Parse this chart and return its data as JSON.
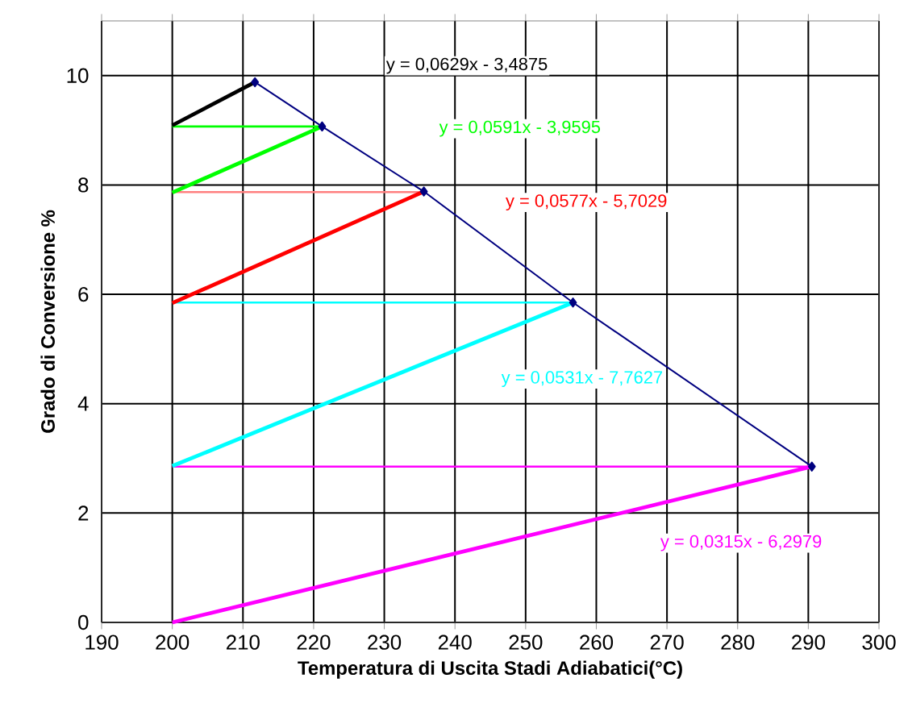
{
  "chart_data": {
    "type": "line",
    "xlabel": "Temperatura di Uscita Stadi Adiabatici(°C)",
    "ylabel": "Grado di Conversione %",
    "xlim": [
      190,
      300
    ],
    "xticks": [
      190,
      200,
      210,
      220,
      230,
      240,
      250,
      260,
      270,
      280,
      290,
      300
    ],
    "ylim": [
      0,
      11
    ],
    "yticks": [
      0,
      2,
      4,
      6,
      8,
      10
    ],
    "grid": true,
    "series": [
      {
        "color": "#000080",
        "marker": "diamond",
        "x": [
          211.7,
          221.2,
          235.6,
          256.7,
          290.5
        ],
        "values": [
          9.88,
          9.07,
          7.88,
          5.85,
          2.85
        ]
      },
      {
        "color": "#00ff00",
        "x": [
          200,
          221.2
        ],
        "values": [
          9.07,
          9.07
        ]
      },
      {
        "color": "#ff8080",
        "x": [
          200,
          235.6
        ],
        "values": [
          7.87,
          7.87
        ]
      },
      {
        "color": "#00ffff",
        "x": [
          200,
          256.7
        ],
        "values": [
          5.85,
          5.85
        ]
      },
      {
        "color": "#ff00ff",
        "x": [
          200,
          290.5
        ],
        "values": [
          2.85,
          2.85
        ]
      },
      {
        "name": "y = 0,0629x - 3,4875",
        "color": "#000000",
        "x": [
          200,
          211.7
        ],
        "values": [
          9.09,
          9.88
        ]
      },
      {
        "name": "y = 0,0591x - 3,9595",
        "color": "#00ff00",
        "x": [
          200,
          221.2
        ],
        "values": [
          7.86,
          9.07
        ]
      },
      {
        "name": "y = 0,0577x - 5,7029",
        "color": "#ff0000",
        "x": [
          200,
          235.6
        ],
        "values": [
          5.84,
          7.88
        ]
      },
      {
        "name": "y = 0,0531x - 7,7627",
        "color": "#00ffff",
        "x": [
          200,
          256.7
        ],
        "values": [
          2.86,
          5.85
        ]
      },
      {
        "name": "y = 0,0315x - 6,2979",
        "color": "#ff00ff",
        "x": [
          200,
          290.5
        ],
        "values": [
          0.0,
          2.85
        ]
      }
    ]
  }
}
